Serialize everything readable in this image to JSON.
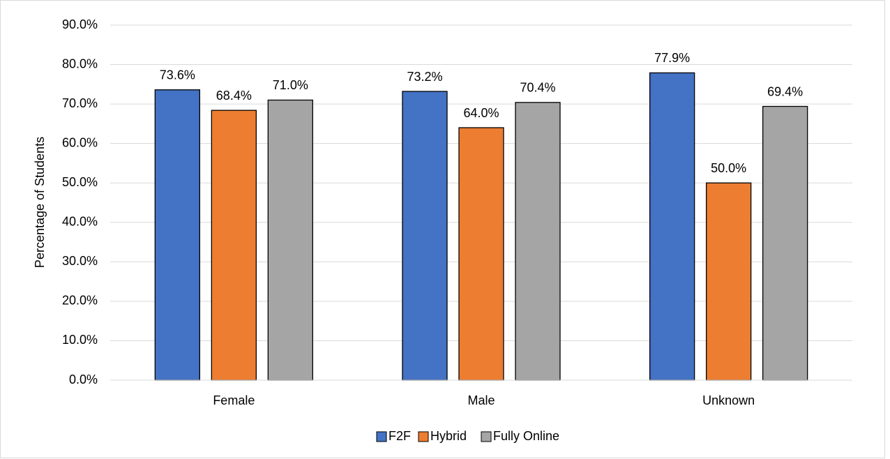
{
  "chart_data": {
    "type": "bar",
    "y_label": "Percentage of Students",
    "categories": [
      "Female",
      "Male",
      "Unknown"
    ],
    "series": [
      {
        "name": "F2F",
        "color": "#4472c4",
        "values": [
          73.6,
          73.2,
          77.9
        ],
        "value_labels": [
          "73.6%",
          "73.2%",
          "77.9%"
        ]
      },
      {
        "name": "Hybrid",
        "color": "#ed7d31",
        "values": [
          68.4,
          64.0,
          50.0
        ],
        "value_labels": [
          "68.4%",
          "64.0%",
          "50.0%"
        ]
      },
      {
        "name": "Fully Online",
        "color": "#a5a5a5",
        "values": [
          71.0,
          70.4,
          69.4
        ],
        "value_labels": [
          "71.0%",
          "70.4%",
          "69.4%"
        ]
      }
    ],
    "ylim": [
      0,
      90
    ],
    "yticks": [
      {
        "value": 0,
        "label": "0.0%"
      },
      {
        "value": 10,
        "label": "10.0%"
      },
      {
        "value": 20,
        "label": "20.0%"
      },
      {
        "value": 30,
        "label": "30.0%"
      },
      {
        "value": 40,
        "label": "40.0%"
      },
      {
        "value": 50,
        "label": "50.0%"
      },
      {
        "value": 60,
        "label": "60.0%"
      },
      {
        "value": 70,
        "label": "70.0%"
      },
      {
        "value": 80,
        "label": "80.0%"
      },
      {
        "value": 90,
        "label": "90.0%"
      }
    ],
    "grid": true,
    "legend": "bottom"
  }
}
